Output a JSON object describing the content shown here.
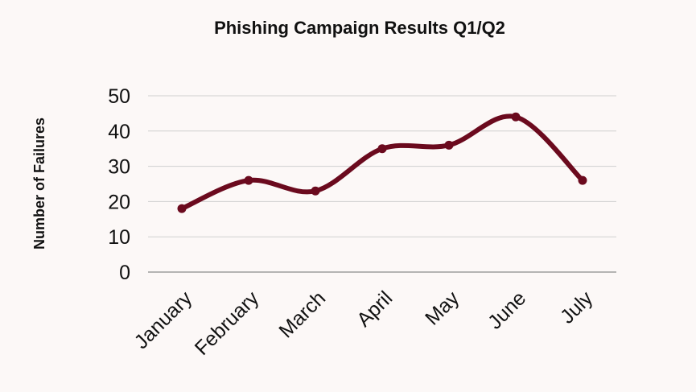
{
  "chart_data": {
    "type": "line",
    "title": "Phishing Campaign Results Q1/Q2",
    "xlabel": "",
    "ylabel": "Number of Failures",
    "categories": [
      "January",
      "February",
      "March",
      "April",
      "May",
      "June",
      "July"
    ],
    "series": [
      {
        "values": [
          18,
          26,
          23,
          35,
          36,
          44,
          26
        ]
      }
    ],
    "ylim": [
      0,
      50
    ],
    "yticks": [
      0,
      10,
      20,
      30,
      40,
      50
    ],
    "grid": true,
    "smooth": true,
    "colors": {
      "line": "#6b0a1e",
      "grid": "#cfcfcf",
      "background": "#fcf8f7"
    }
  }
}
